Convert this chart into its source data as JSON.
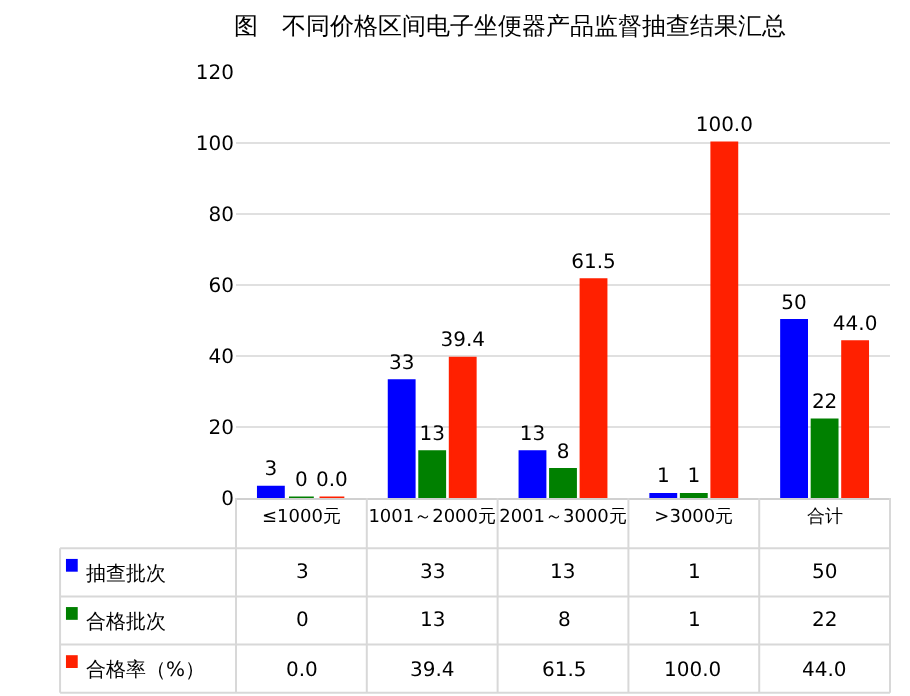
{
  "chart_data": {
    "type": "bar",
    "title": "图　不同价格区间电子坐便器产品监督抽查结果汇总",
    "categories": [
      "≤1000元",
      "1001～2000元",
      "2001～3000元",
      ">3000元",
      "合计"
    ],
    "series": [
      {
        "name": "抽查批次",
        "color": "#0000ff",
        "values": [
          3,
          33,
          13,
          1,
          50
        ],
        "value_labels": [
          "3",
          "33",
          "13",
          "1",
          "50"
        ]
      },
      {
        "name": "合格批次",
        "color": "#008000",
        "values": [
          0,
          13,
          8,
          1,
          22
        ],
        "value_labels": [
          "0",
          "13",
          "8",
          "1",
          "22"
        ]
      },
      {
        "name": "合格率（%）",
        "color": "#ff2000",
        "values": [
          0.0,
          39.4,
          61.5,
          100.0,
          44.0
        ],
        "value_labels": [
          "0.0",
          "39.4",
          "61.5",
          "100.0",
          "44.0"
        ]
      }
    ],
    "ylim": [
      0,
      120
    ],
    "yticks": [
      0,
      20,
      40,
      60,
      80,
      100,
      120
    ],
    "grid": "y",
    "legend": "bottom"
  }
}
